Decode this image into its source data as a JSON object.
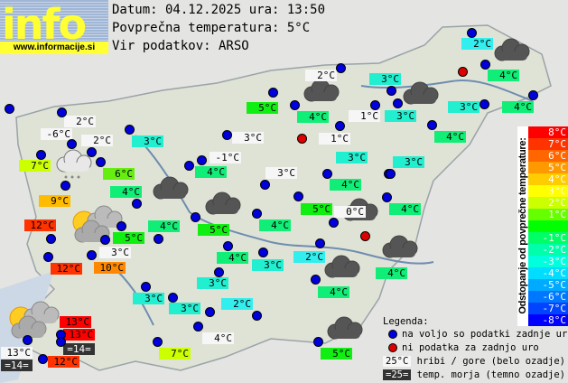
{
  "logo": {
    "text": "info",
    "url": "www.informacije.si"
  },
  "header": {
    "date_line": "Datum: 04.12.2025 ura: 13:50",
    "avg_line": "Povprečna temperatura: 5°C",
    "source_line": "Vir podatkov: ARSO"
  },
  "label_colors": {
    "white": "#f6f6f6",
    "c2": "#33eeee",
    "c3": "#22eed0",
    "c4": "#11ee77",
    "c5": "#11ee11",
    "c6": "#66ee11",
    "c7": "#ccff00",
    "c9": "#ffbb00",
    "c10": "#ff8800",
    "c12": "#ff3300",
    "c13": "#ff0000",
    "dark": "#333333"
  },
  "temperatures": [
    {
      "t": "2°C",
      "k": "white"
    },
    {
      "t": "-6°C",
      "k": "white"
    },
    {
      "t": "2°C",
      "k": "white"
    },
    {
      "t": "3°C",
      "k": "c3"
    },
    {
      "t": "7°C",
      "k": "c7"
    },
    {
      "t": "6°C",
      "k": "c6"
    },
    {
      "t": "4°C",
      "k": "c4"
    },
    {
      "t": "9°C",
      "k": "c9"
    },
    {
      "t": "12°C",
      "k": "c12"
    },
    {
      "t": "4°C",
      "k": "c4"
    },
    {
      "t": "5°C",
      "k": "c5"
    },
    {
      "t": "3°C",
      "k": "white"
    },
    {
      "t": "12°C",
      "k": "c12"
    },
    {
      "t": "10°C",
      "k": "c10"
    },
    {
      "t": "3°C",
      "k": "c3"
    },
    {
      "t": "3°C",
      "k": "c3"
    },
    {
      "t": "13°C",
      "k": "c13"
    },
    {
      "t": "13°C",
      "k": "c13"
    },
    {
      "t": "=14=",
      "k": "dark"
    },
    {
      "t": "13°C",
      "k": "white"
    },
    {
      "t": "=14=",
      "k": "dark"
    },
    {
      "t": "12°C",
      "k": "c12"
    },
    {
      "t": "7°C",
      "k": "c7"
    },
    {
      "t": "2°C",
      "k": "white"
    },
    {
      "t": "5°C",
      "k": "c5"
    },
    {
      "t": "4°C",
      "k": "c4"
    },
    {
      "t": "1°C",
      "k": "white"
    },
    {
      "t": "3°C",
      "k": "white"
    },
    {
      "t": "1°C",
      "k": "white"
    },
    {
      "t": "-1°C",
      "k": "white"
    },
    {
      "t": "4°C",
      "k": "c4"
    },
    {
      "t": "3°C",
      "k": "white"
    },
    {
      "t": "3°C",
      "k": "c3"
    },
    {
      "t": "4°C",
      "k": "c4"
    },
    {
      "t": "2°C",
      "k": "c2"
    },
    {
      "t": "4°C",
      "k": "c4"
    },
    {
      "t": "3°C",
      "k": "c3"
    },
    {
      "t": "3°C",
      "k": "c3"
    },
    {
      "t": "3°C",
      "k": "c3"
    },
    {
      "t": "4°C",
      "k": "c4"
    },
    {
      "t": "4°C",
      "k": "c4"
    },
    {
      "t": "3°C",
      "k": "c3"
    },
    {
      "t": "4°C",
      "k": "c4"
    },
    {
      "t": "5°C",
      "k": "c5"
    },
    {
      "t": "0°C",
      "k": "white"
    },
    {
      "t": "5°C",
      "k": "c5"
    },
    {
      "t": "4°C",
      "k": "c4"
    },
    {
      "t": "4°C",
      "k": "c4"
    },
    {
      "t": "3°C",
      "k": "c3"
    },
    {
      "t": "2°C",
      "k": "c2"
    },
    {
      "t": "4°C",
      "k": "c4"
    },
    {
      "t": "3°C",
      "k": "c3"
    },
    {
      "t": "4°C",
      "k": "c4"
    },
    {
      "t": "2°C",
      "k": "c2"
    },
    {
      "t": "4°C",
      "k": "white"
    },
    {
      "t": "5°C",
      "k": "c5"
    }
  ],
  "station_status": {
    "available_count": 62,
    "missing_count": 3
  },
  "weather_icons": [
    "drizzle-cloud",
    "overcast",
    "overcast",
    "overcast",
    "overcast",
    "overcast",
    "overcast",
    "overcast",
    "overcast",
    "overcast",
    "partly-sunny",
    "partly-sunny"
  ],
  "scale": {
    "title": "Odstopanje od povprečne temperature:",
    "steps": [
      {
        "label": "8°C",
        "color": "#ff0000"
      },
      {
        "label": "7°C",
        "color": "#ff3300"
      },
      {
        "label": "6°C",
        "color": "#ff6600"
      },
      {
        "label": "5°C",
        "color": "#ff9900"
      },
      {
        "label": "4°C",
        "color": "#ffcc00"
      },
      {
        "label": "3°C",
        "color": "#ffff00"
      },
      {
        "label": "2°C",
        "color": "#ccff00"
      },
      {
        "label": "1°C",
        "color": "#66ff00"
      },
      {
        "label": "",
        "color": "#00ff00"
      },
      {
        "label": "-1°C",
        "color": "#00ff66"
      },
      {
        "label": "-2°C",
        "color": "#00ffaa"
      },
      {
        "label": "-3°C",
        "color": "#00ffdd"
      },
      {
        "label": "-4°C",
        "color": "#00ddff"
      },
      {
        "label": "-5°C",
        "color": "#00aaff"
      },
      {
        "label": "-6°C",
        "color": "#0077ff"
      },
      {
        "label": "-7°C",
        "color": "#0044ff"
      },
      {
        "label": "-8°C",
        "color": "#0000ff"
      }
    ]
  },
  "legend": {
    "title": "Legenda:",
    "available": "na voljo so podatki zadnje ure",
    "missing": "ni podatka za zadnjo uro",
    "mountain_sample": "25°C",
    "mountain": "hribi / gore (belo ozadje)",
    "sea_sample": "=25=",
    "sea": "temp. morja (temno ozadje)"
  }
}
